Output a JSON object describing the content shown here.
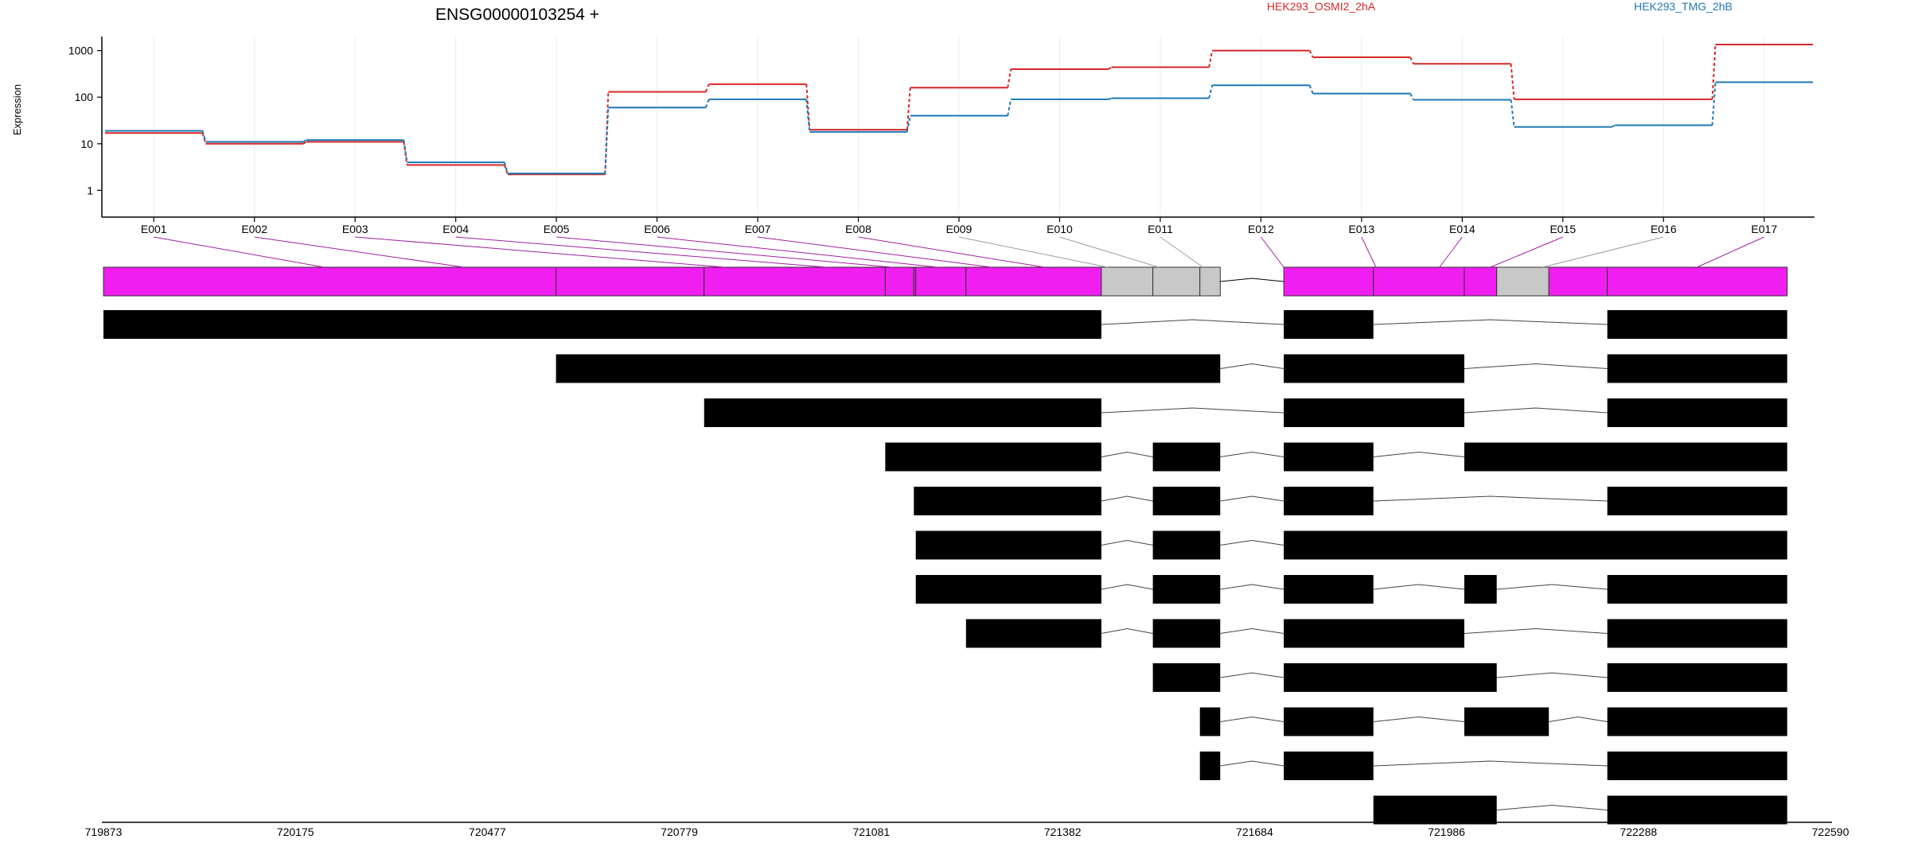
{
  "chart_data": {
    "type": "line",
    "title": "ENSG00000103254 +",
    "ylabel": "Expression",
    "xlabel": "",
    "y_scale": "log10",
    "y_ticks": [
      "1",
      "10",
      "100",
      "1000"
    ],
    "y_tick_values": [
      1,
      10,
      100,
      1000
    ],
    "exon_labels": [
      "E001",
      "E002",
      "E003",
      "E004",
      "E005",
      "E006",
      "E007",
      "E008",
      "E009",
      "E010",
      "E011",
      "E012",
      "E013",
      "E014",
      "E015",
      "E016",
      "E017"
    ],
    "series": [
      {
        "name": "HEK293_OSMI2_2hA",
        "color": "#d62728",
        "values": [
          17,
          10,
          11,
          3.5,
          2.2,
          130,
          190,
          20,
          160,
          400,
          440,
          1000,
          720,
          520,
          90,
          90,
          1350
        ]
      },
      {
        "name": "HEK293_TMG_2hB",
        "color": "#1f77b4",
        "values": [
          19,
          11,
          12,
          4,
          2.3,
          60,
          90,
          18,
          40,
          90,
          95,
          180,
          120,
          88,
          23,
          25,
          210
        ]
      }
    ],
    "genomic_ticks": [
      "719873",
      "720175",
      "720477",
      "720779",
      "721081",
      "721382",
      "721684",
      "721986",
      "722288",
      "722590"
    ],
    "genomic_tick_values": [
      719873,
      720175,
      720477,
      720779,
      721081,
      721382,
      721684,
      721986,
      722288,
      722590
    ],
    "exon_model": {
      "segments": [
        {
          "start": 719873,
          "end": 720585,
          "type": "counted"
        },
        {
          "start": 720585,
          "end": 720818,
          "type": "counted"
        },
        {
          "start": 720818,
          "end": 721103,
          "type": "counted"
        },
        {
          "start": 721103,
          "end": 721148,
          "type": "counted"
        },
        {
          "start": 721148,
          "end": 721151,
          "type": "counted"
        },
        {
          "start": 721151,
          "end": 721230,
          "type": "counted"
        },
        {
          "start": 721230,
          "end": 721443,
          "type": "counted"
        },
        {
          "start": 721443,
          "end": 721524,
          "type": "excluded"
        },
        {
          "start": 721524,
          "end": 721598,
          "type": "excluded"
        },
        {
          "start": 721598,
          "end": 721630,
          "type": "excluded"
        },
        {
          "start": 721730,
          "end": 721871,
          "type": "counted"
        },
        {
          "start": 721871,
          "end": 722014,
          "type": "counted"
        },
        {
          "start": 722014,
          "end": 722065,
          "type": "counted"
        },
        {
          "start": 722065,
          "end": 722147,
          "type": "excluded"
        },
        {
          "start": 722147,
          "end": 722239,
          "type": "counted"
        },
        {
          "start": 722239,
          "end": 722522,
          "type": "counted"
        }
      ],
      "exon_anchor_positions": [
        720220,
        720440,
        720850,
        721010,
        721113,
        721185,
        721270,
        721353,
        721453,
        721533,
        721603,
        721730,
        721875,
        721975,
        722055,
        722137,
        722380
      ],
      "counted_color": "#f01ef0",
      "excluded_color": "#c8c8c8",
      "connector_colors": [
        "#a020a0",
        "#9e9e9e"
      ]
    },
    "transcripts": [
      [
        [
          719873,
          721443
        ],
        [
          721730,
          721871
        ],
        [
          722239,
          722522
        ]
      ],
      [
        [
          720585,
          721630
        ],
        [
          721730,
          722014
        ],
        [
          722239,
          722522
        ]
      ],
      [
        [
          720818,
          721443
        ],
        [
          721730,
          722014
        ],
        [
          722239,
          722522
        ]
      ],
      [
        [
          721103,
          721443
        ],
        [
          721524,
          721630
        ],
        [
          721730,
          721871
        ],
        [
          722014,
          722522
        ]
      ],
      [
        [
          721148,
          721443
        ],
        [
          721524,
          721630
        ],
        [
          721730,
          721871
        ],
        [
          722239,
          722522
        ]
      ],
      [
        [
          721151,
          721443
        ],
        [
          721524,
          721630
        ],
        [
          721730,
          722522
        ]
      ],
      [
        [
          721151,
          721443
        ],
        [
          721524,
          721630
        ],
        [
          721730,
          721871
        ],
        [
          722014,
          722065
        ],
        [
          722239,
          722522
        ]
      ],
      [
        [
          721230,
          721443
        ],
        [
          721524,
          721630
        ],
        [
          721730,
          722014
        ],
        [
          722239,
          722522
        ]
      ],
      [
        [
          721524,
          721630
        ],
        [
          721730,
          722065
        ],
        [
          722239,
          722522
        ]
      ],
      [
        [
          721598,
          721630
        ],
        [
          721730,
          721871
        ],
        [
          722014,
          722147
        ],
        [
          722239,
          722522
        ]
      ],
      [
        [
          721598,
          721630
        ],
        [
          721730,
          721871
        ],
        [
          722239,
          722522
        ]
      ],
      [
        [
          721871,
          722065
        ],
        [
          722239,
          722522
        ]
      ]
    ]
  }
}
